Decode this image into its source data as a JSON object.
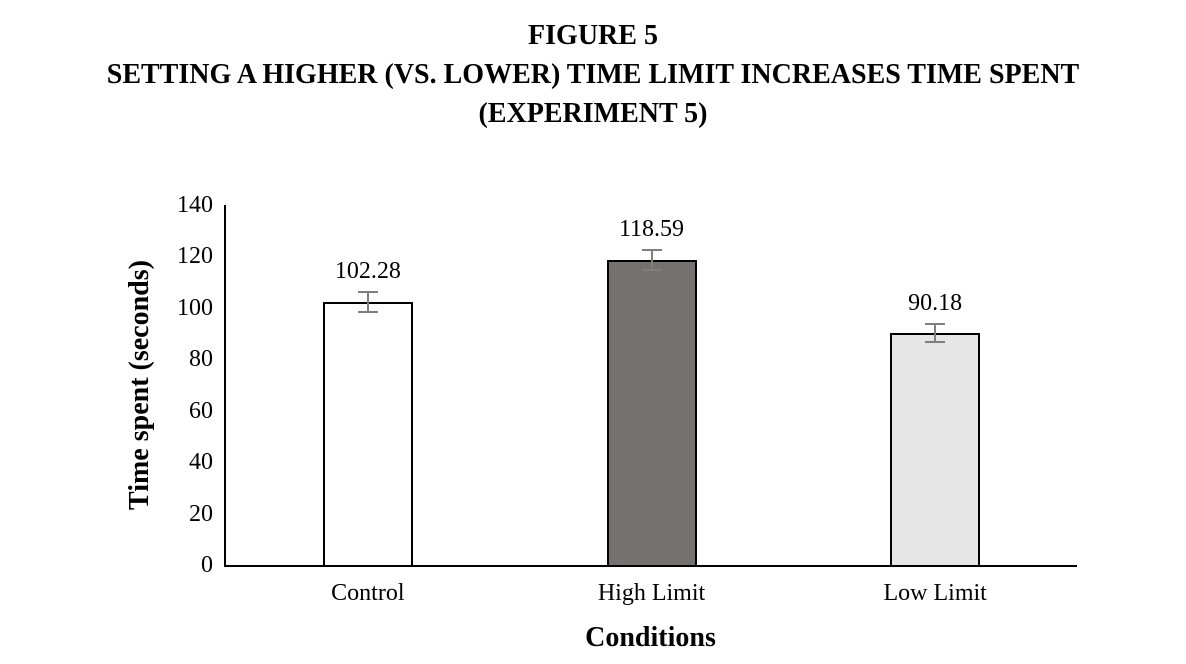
{
  "title": {
    "line1": "FIGURE 5",
    "line2": "SETTING A HIGHER (VS. LOWER) TIME LIMIT INCREASES TIME SPENT",
    "line3": "(EXPERIMENT 5)"
  },
  "chart_data": {
    "type": "bar",
    "categories": [
      "Control",
      "High Limit",
      "Low Limit"
    ],
    "values": [
      102.28,
      118.59,
      90.18
    ],
    "data_labels": [
      "102.28",
      "118.59",
      "90.18"
    ],
    "errors": [
      4.4,
      4.3,
      4.0
    ],
    "bar_colors": [
      "#ffffff",
      "#767171",
      "#e7e6e6"
    ],
    "bar_border_color": "#000000",
    "error_bar_color": "#7f7f7f",
    "xlabel": "Conditions",
    "ylabel": "Time spent (seconds)",
    "ylim": [
      0,
      140
    ],
    "yticks": [
      0,
      20,
      40,
      60,
      80,
      100,
      120,
      140
    ],
    "grid": false,
    "legend": "none"
  }
}
